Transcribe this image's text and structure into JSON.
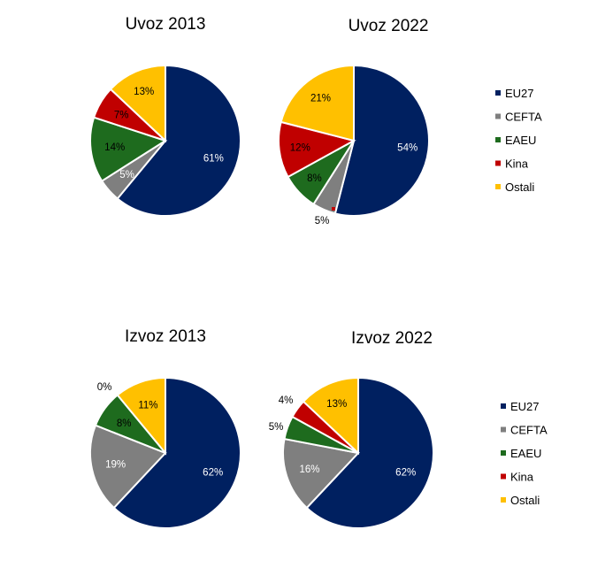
{
  "colors": {
    "EU27": "#002060",
    "CEFTA": "#7f7f7f",
    "EAEU": "#1e6b1e",
    "Kina": "#c00000",
    "Ostali": "#ffc000",
    "background": "#ffffff"
  },
  "legends": [
    {
      "entries": [
        "EU27",
        "CEFTA",
        "EAEU",
        "Kina",
        "Ostali"
      ]
    },
    {
      "entries": [
        "EU27",
        "CEFTA",
        "EAEU",
        "Kina",
        "Ostali"
      ]
    }
  ],
  "chart_data": [
    {
      "type": "pie",
      "title": "Uvoz 2013",
      "categories": [
        "EU27",
        "CEFTA",
        "EAEU",
        "Kina",
        "Ostali"
      ],
      "values": [
        61,
        5,
        14,
        7,
        13
      ],
      "labels": [
        "61%",
        "5%",
        "14%",
        "7%",
        "13%"
      ]
    },
    {
      "type": "pie",
      "title": "Uvoz 2022",
      "categories": [
        "EU27",
        "CEFTA",
        "EAEU",
        "Kina",
        "Ostali"
      ],
      "values": [
        54,
        5,
        8,
        12,
        21
      ],
      "labels": [
        "54%",
        "5%",
        "8%",
        "12%",
        "21%"
      ]
    },
    {
      "type": "pie",
      "title": "Izvoz 2013",
      "categories": [
        "EU27",
        "CEFTA",
        "EAEU",
        "Kina",
        "Ostali"
      ],
      "values": [
        62,
        19,
        8,
        0,
        11
      ],
      "labels": [
        "62%",
        "19%",
        "8%",
        "0%",
        "11%"
      ]
    },
    {
      "type": "pie",
      "title": "Izvoz 2022",
      "categories": [
        "EU27",
        "CEFTA",
        "EAEU",
        "Kina",
        "Ostali"
      ],
      "values": [
        62,
        16,
        5,
        4,
        13
      ],
      "labels": [
        "62%",
        "16%",
        "5%",
        "4%",
        "13%"
      ]
    }
  ]
}
